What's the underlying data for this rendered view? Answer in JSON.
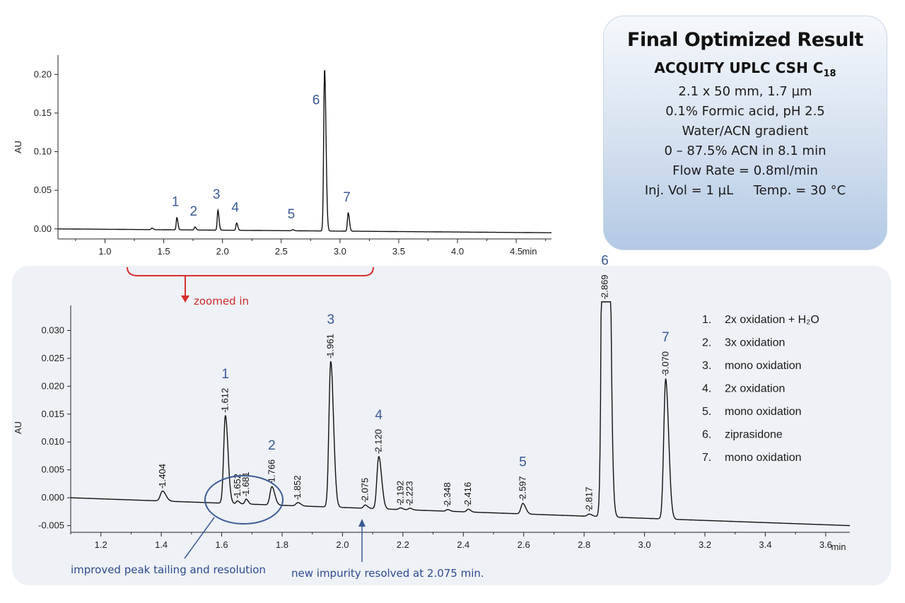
{
  "info": {
    "title": "Final Optimized Result",
    "column": "ACQUITY UPLC CSH C",
    "column_sub": "18",
    "lines": [
      "2.1 x 50 mm, 1.7 µm",
      "0.1% Formic acid, pH 2.5",
      "Water/ACN gradient",
      "0 – 87.5% ACN in 8.1 min",
      "Flow Rate = 0.8ml/min",
      "Inj. Vol = 1 µL     Temp. = 30 °C"
    ]
  },
  "annotations": {
    "zoomed_in": "zoomed in",
    "peak_tailing": "improved peak tailing and resolution",
    "new_impurity": "new impurity resolved at 2.075 min."
  },
  "legend": [
    {
      "num": "1.",
      "text": "2x oxidation + H₂O"
    },
    {
      "num": "2.",
      "text": "3x oxidation"
    },
    {
      "num": "3.",
      "text": "mono oxidation"
    },
    {
      "num": "4.",
      "text": "2x oxidation"
    },
    {
      "num": "5.",
      "text": "mono oxidation"
    },
    {
      "num": "6.",
      "text": "ziprasidone"
    },
    {
      "num": "7.",
      "text": "mono oxidation"
    }
  ],
  "colors": {
    "trace": "#111111",
    "accent_blue": "#3a5a94",
    "accent_red": "#d63030",
    "panel": "#eef1f5"
  },
  "chart_data": [
    {
      "type": "line",
      "ylabel": "AU",
      "xlabel": "min",
      "xlim": [
        0.6,
        4.8
      ],
      "ylim": [
        -0.013,
        0.225
      ],
      "x_ticks": [
        "1.0",
        "1.5",
        "2.0",
        "2.5",
        "3.0",
        "3.5",
        "4.0",
        "4.5"
      ],
      "x_unit": "min",
      "y_ticks": [
        "0.00",
        "0.05",
        "0.10",
        "0.15",
        "0.20"
      ],
      "baseline": {
        "start": 0.0,
        "end": -0.005
      },
      "peaks": [
        {
          "label": "",
          "x": 1.4,
          "height": 0.002,
          "width": 0.007
        },
        {
          "label": "1",
          "x": 1.612,
          "height": 0.016,
          "width": 0.0055
        },
        {
          "label": "2",
          "x": 1.766,
          "height": 0.004,
          "width": 0.006
        },
        {
          "label": "3",
          "x": 1.961,
          "height": 0.026,
          "width": 0.006
        },
        {
          "label": "4",
          "x": 2.12,
          "height": 0.0095,
          "width": 0.006
        },
        {
          "label": "5",
          "x": 2.597,
          "height": 0.0015,
          "width": 0.007
        },
        {
          "label": "6",
          "x": 2.869,
          "height": 0.21,
          "width": 0.0075
        },
        {
          "label": "7",
          "x": 3.07,
          "height": 0.024,
          "width": 0.0065
        }
      ]
    },
    {
      "type": "line",
      "ylabel": "AU",
      "xlabel": "min",
      "xlim": [
        1.1,
        3.68
      ],
      "ylim": [
        -0.0062,
        0.0345
      ],
      "x_ticks": [
        "1.2",
        "1.4",
        "1.6",
        "1.8",
        "2.0",
        "2.2",
        "2.4",
        "2.6",
        "2.8",
        "3.0",
        "3.2",
        "3.4",
        "3.6"
      ],
      "x_unit": "min",
      "y_ticks": [
        "-0.005",
        "0.000",
        "0.005",
        "0.010",
        "0.015",
        "0.020",
        "0.025",
        "0.030"
      ],
      "baseline": {
        "start": 0.0,
        "end": -0.005
      },
      "peaks": [
        {
          "label": "1.404",
          "x": 1.404,
          "height": 0.0018,
          "width": 0.007,
          "num": ""
        },
        {
          "label": "1.612",
          "x": 1.612,
          "height": 0.0158,
          "width": 0.0055,
          "num": "1"
        },
        {
          "label": "1.652",
          "x": 1.652,
          "height": 0.0005,
          "width": 0.004,
          "num": ""
        },
        {
          "label": "1.681",
          "x": 1.681,
          "height": 0.0009,
          "width": 0.004,
          "num": ""
        },
        {
          "label": "1.766",
          "x": 1.766,
          "height": 0.0033,
          "width": 0.006,
          "num": "2"
        },
        {
          "label": "1.852",
          "x": 1.852,
          "height": 0.0006,
          "width": 0.006,
          "num": ""
        },
        {
          "label": "1.961",
          "x": 1.961,
          "height": 0.0262,
          "width": 0.0058,
          "num": "3"
        },
        {
          "label": "2.075",
          "x": 2.075,
          "height": 0.0006,
          "width": 0.005,
          "num": ""
        },
        {
          "label": "2.120",
          "x": 2.12,
          "height": 0.0094,
          "width": 0.006,
          "num": "4"
        },
        {
          "label": "2.192",
          "x": 2.192,
          "height": 0.0003,
          "width": 0.005,
          "num": ""
        },
        {
          "label": "2.223",
          "x": 2.223,
          "height": 0.0003,
          "width": 0.005,
          "num": ""
        },
        {
          "label": "2.348",
          "x": 2.348,
          "height": 0.0003,
          "width": 0.005,
          "num": ""
        },
        {
          "label": "2.416",
          "x": 2.416,
          "height": 0.0005,
          "width": 0.005,
          "num": ""
        },
        {
          "label": "2.597",
          "x": 2.597,
          "height": 0.0019,
          "width": 0.006,
          "num": "5"
        },
        {
          "label": "2.817",
          "x": 2.817,
          "height": 0.0004,
          "width": 0.006,
          "num": ""
        },
        {
          "label": "2.869",
          "x": 2.869,
          "height": 0.21,
          "width": 0.0068,
          "num": "6"
        },
        {
          "label": "3.070",
          "x": 3.07,
          "height": 0.0252,
          "width": 0.0062,
          "num": "7"
        }
      ]
    }
  ]
}
